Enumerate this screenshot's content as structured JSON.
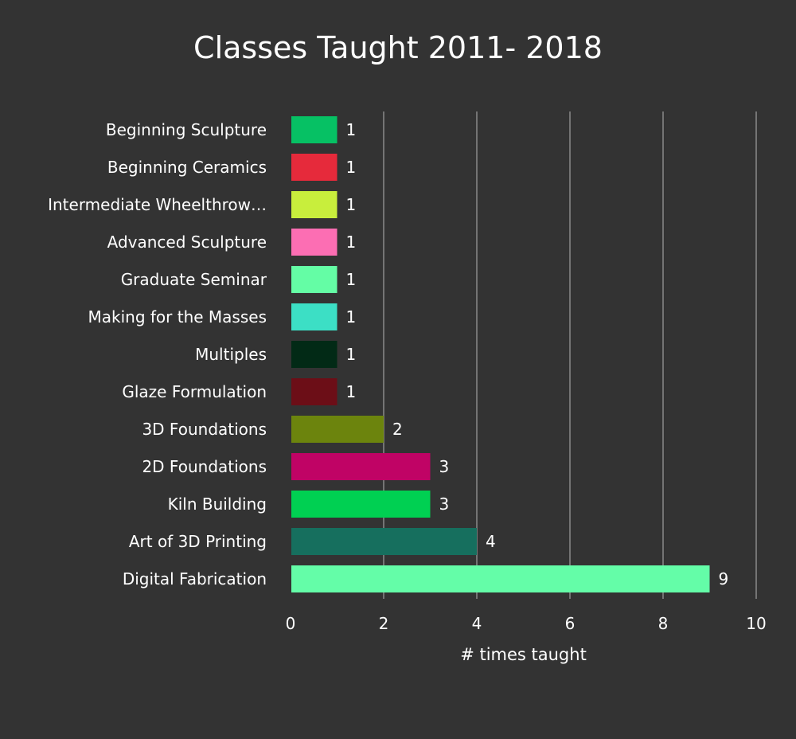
{
  "chart_data": {
    "type": "bar",
    "orientation": "horizontal",
    "title": "Classes Taught 2011- 2018",
    "xlabel": "# times taught",
    "ylabel": "",
    "xlim": [
      0,
      10
    ],
    "xticks": [
      0,
      2,
      4,
      6,
      8,
      10
    ],
    "grid": "vertical",
    "legend": "none",
    "background": "#333333",
    "categories": [
      "Beginning Sculpture",
      "Beginning Ceramics",
      "Intermediate Wheelthrow…",
      "Advanced Sculpture",
      "Graduate Seminar",
      "Making for the Masses",
      "Multiples",
      "Glaze Formulation",
      "3D Foundations",
      "2D Foundations",
      "Kiln Building",
      "Art of 3D Printing",
      "Digital Fabrication"
    ],
    "values": [
      1,
      1,
      1,
      1,
      1,
      1,
      1,
      1,
      2,
      3,
      3,
      4,
      9
    ],
    "colors": [
      "#06c164",
      "#e62a3b",
      "#c8ee3c",
      "#fc6eb3",
      "#64fda5",
      "#3cdfc5",
      "#022a16",
      "#6c0e17",
      "#6c840d",
      "#c00365",
      "#00d052",
      "#166f5e",
      "#64fda8"
    ]
  }
}
